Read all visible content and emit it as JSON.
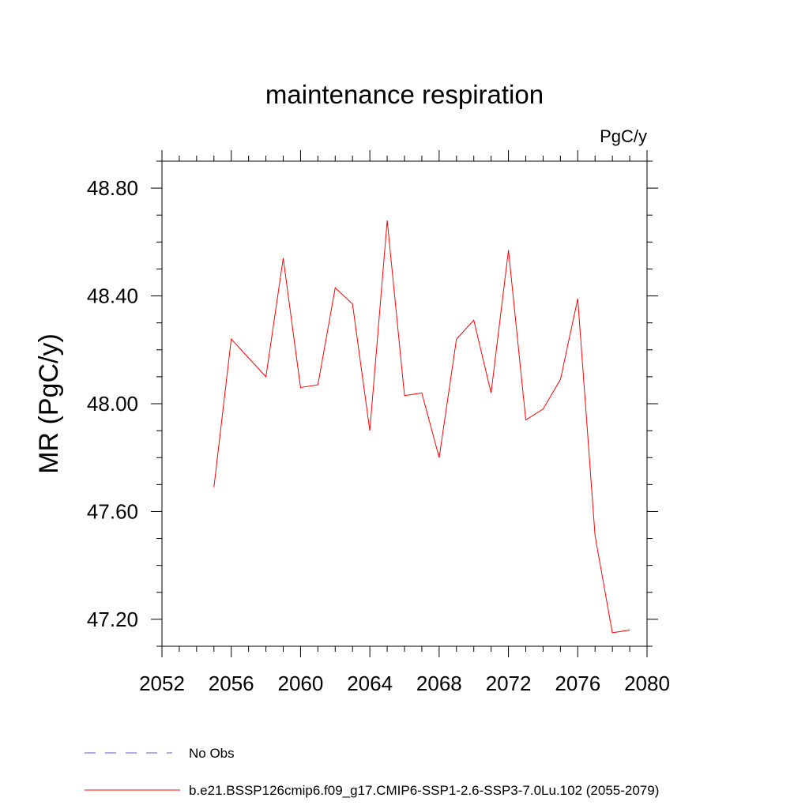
{
  "chart_data": {
    "type": "line",
    "title": "maintenance respiration",
    "units_label": "PgC/y",
    "ylabel": "MR  (PgC/y)",
    "xlabel": "",
    "xlim": [
      2052,
      2080
    ],
    "ylim": [
      47.1,
      48.9
    ],
    "x_ticks": [
      2052,
      2056,
      2060,
      2064,
      2068,
      2072,
      2076,
      2080
    ],
    "x_tick_labels": [
      "2052",
      "2056",
      "2060",
      "2064",
      "2068",
      "2072",
      "2076",
      "2080"
    ],
    "y_ticks": [
      47.2,
      47.6,
      48.0,
      48.4,
      48.8
    ],
    "y_tick_labels": [
      "47.20",
      "47.60",
      "48.00",
      "48.40",
      "48.80"
    ],
    "grid": false,
    "legend_position": "bottom",
    "series": [
      {
        "name": "b.e21.BSSP126cmip6.f09_g17.CMIP6-SSP1-2.6-SSP3-7.0Lu.102 (2055-2079)",
        "color": "#ff0000",
        "style": "solid",
        "x": [
          2055,
          2056,
          2057,
          2058,
          2059,
          2060,
          2061,
          2062,
          2063,
          2064,
          2065,
          2066,
          2067,
          2068,
          2069,
          2070,
          2071,
          2072,
          2073,
          2074,
          2075,
          2076,
          2077,
          2078,
          2079
        ],
        "values": [
          47.69,
          48.24,
          48.17,
          48.1,
          48.54,
          48.06,
          48.07,
          48.43,
          48.37,
          47.9,
          48.68,
          48.03,
          48.04,
          47.8,
          48.24,
          48.31,
          48.04,
          48.57,
          47.94,
          47.98,
          48.09,
          48.39,
          47.51,
          47.15,
          47.16
        ]
      }
    ],
    "legend": [
      {
        "label": "No Obs",
        "color": "#6a5acd",
        "style": "dashed"
      },
      {
        "label": "b.e21.BSSP126cmip6.f09_g17.CMIP6-SSP1-2.6-SSP3-7.0Lu.102 (2055-2079)",
        "color": "#ff0000",
        "style": "solid"
      }
    ]
  }
}
